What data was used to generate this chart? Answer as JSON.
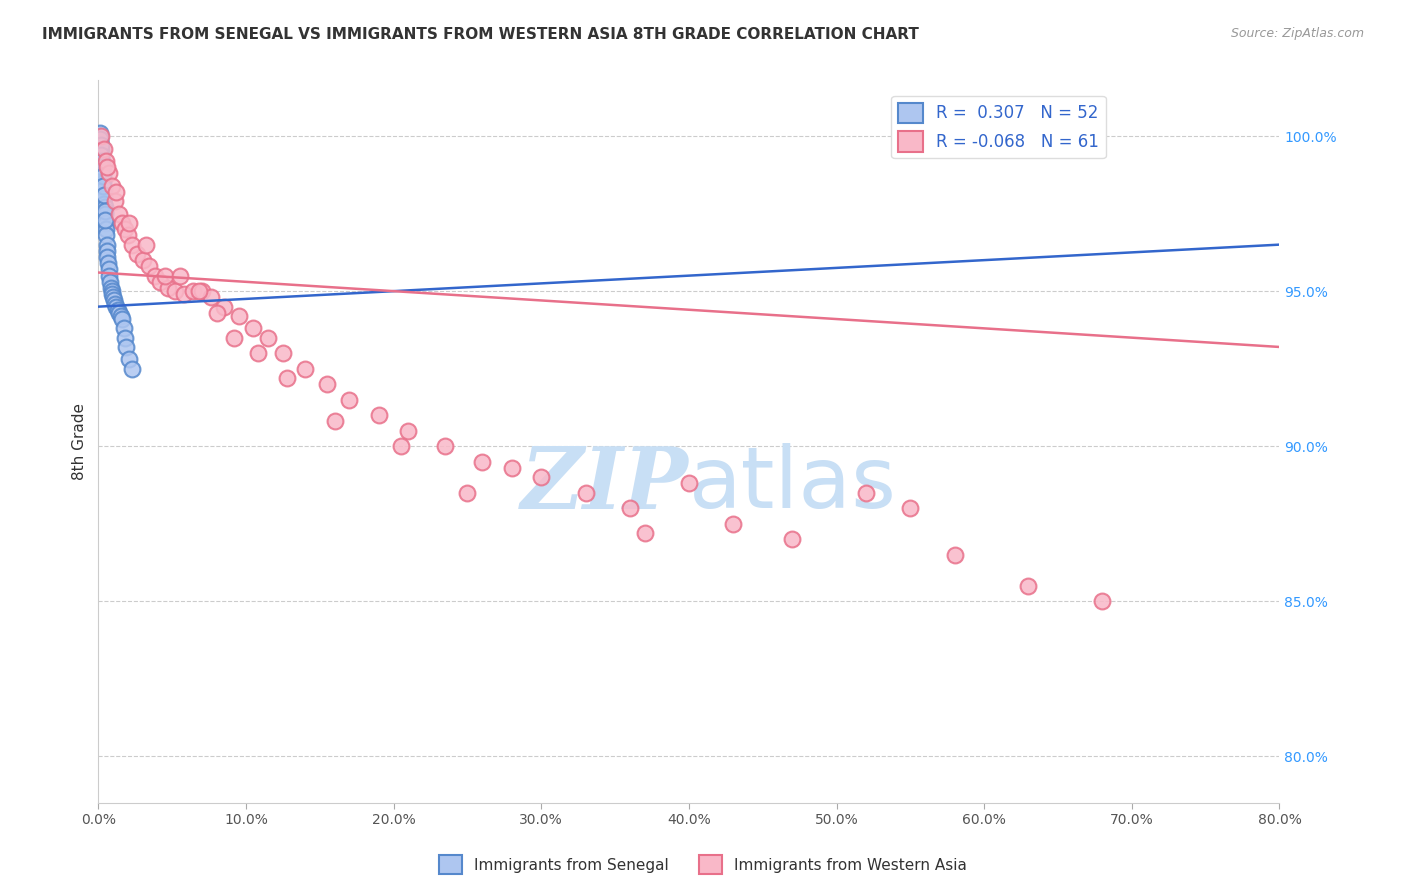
{
  "title": "IMMIGRANTS FROM SENEGAL VS IMMIGRANTS FROM WESTERN ASIA 8TH GRADE CORRELATION CHART",
  "source": "Source: ZipAtlas.com",
  "ylabel": "8th Grade",
  "x_tick_labels": [
    "0.0%",
    "10.0%",
    "20.0%",
    "30.0%",
    "40.0%",
    "50.0%",
    "60.0%",
    "70.0%",
    "80.0%"
  ],
  "x_tick_values": [
    0.0,
    10.0,
    20.0,
    30.0,
    40.0,
    50.0,
    60.0,
    70.0,
    80.0
  ],
  "y_tick_labels_right": [
    "80.0%",
    "85.0%",
    "90.0%",
    "95.0%",
    "100.0%"
  ],
  "y_tick_values": [
    80.0,
    85.0,
    90.0,
    95.0,
    100.0
  ],
  "xlim": [
    0.0,
    80.0
  ],
  "ylim": [
    78.5,
    101.8
  ],
  "senegal_color_fill": "#aec6f0",
  "senegal_color_edge": "#5588cc",
  "western_asia_color_fill": "#f9b8c8",
  "western_asia_color_edge": "#e8708a",
  "trend_blue_color": "#3366cc",
  "trend_pink_color": "#e8708a",
  "watermark_zip": "ZIP",
  "watermark_atlas": "atlas",
  "watermark_color_zip": "#c8dff5",
  "watermark_color_atlas": "#c8dff5",
  "bottom_legend": [
    "Immigrants from Senegal",
    "Immigrants from Western Asia"
  ],
  "legend_labels": [
    "R =  0.307   N = 52",
    "R = -0.068   N = 61"
  ],
  "legend_colors_fill": [
    "#aec6f0",
    "#f9b8c8"
  ],
  "legend_colors_edge": [
    "#5588cc",
    "#e8708a"
  ],
  "senegal_x": [
    0.08,
    0.12,
    0.15,
    0.18,
    0.2,
    0.22,
    0.25,
    0.28,
    0.3,
    0.32,
    0.35,
    0.38,
    0.4,
    0.42,
    0.45,
    0.48,
    0.5,
    0.52,
    0.55,
    0.58,
    0.6,
    0.65,
    0.7,
    0.75,
    0.8,
    0.85,
    0.9,
    0.95,
    1.0,
    1.05,
    1.1,
    1.2,
    1.3,
    1.4,
    1.5,
    1.6,
    1.7,
    1.8,
    1.9,
    2.1,
    2.3,
    0.1,
    0.13,
    0.16,
    0.19,
    0.23,
    0.26,
    0.29,
    0.33,
    0.36,
    0.43,
    0.47
  ],
  "senegal_y": [
    100.0,
    99.8,
    99.6,
    99.5,
    99.3,
    99.1,
    99.0,
    98.8,
    98.6,
    98.5,
    98.3,
    98.0,
    97.8,
    97.7,
    97.5,
    97.2,
    97.0,
    96.8,
    96.5,
    96.3,
    96.1,
    95.9,
    95.7,
    95.5,
    95.3,
    95.1,
    95.0,
    94.9,
    94.8,
    94.7,
    94.6,
    94.5,
    94.4,
    94.3,
    94.2,
    94.1,
    93.8,
    93.5,
    93.2,
    92.8,
    92.5,
    100.1,
    99.9,
    99.7,
    99.4,
    99.2,
    99.0,
    98.7,
    98.4,
    98.1,
    97.6,
    97.3
  ],
  "western_asia_x": [
    0.2,
    0.35,
    0.5,
    0.7,
    0.9,
    1.1,
    1.4,
    1.6,
    1.8,
    2.0,
    2.3,
    2.6,
    3.0,
    3.4,
    3.8,
    4.2,
    4.7,
    5.2,
    5.8,
    6.4,
    7.0,
    7.6,
    8.5,
    9.5,
    10.5,
    11.5,
    12.5,
    14.0,
    15.5,
    17.0,
    19.0,
    21.0,
    23.5,
    26.0,
    28.0,
    30.0,
    33.0,
    36.0,
    40.0,
    43.0,
    47.0,
    52.0,
    58.0,
    63.0,
    68.0,
    0.6,
    1.2,
    2.1,
    3.2,
    4.5,
    5.5,
    6.8,
    8.0,
    9.2,
    10.8,
    12.8,
    16.0,
    20.5,
    25.0,
    37.0,
    55.0
  ],
  "western_asia_y": [
    100.0,
    99.6,
    99.2,
    98.8,
    98.4,
    97.9,
    97.5,
    97.2,
    97.0,
    96.8,
    96.5,
    96.2,
    96.0,
    95.8,
    95.5,
    95.3,
    95.1,
    95.0,
    94.9,
    95.0,
    95.0,
    94.8,
    94.5,
    94.2,
    93.8,
    93.5,
    93.0,
    92.5,
    92.0,
    91.5,
    91.0,
    90.5,
    90.0,
    89.5,
    89.3,
    89.0,
    88.5,
    88.0,
    88.8,
    87.5,
    87.0,
    88.5,
    86.5,
    85.5,
    85.0,
    99.0,
    98.2,
    97.2,
    96.5,
    95.5,
    95.5,
    95.0,
    94.3,
    93.5,
    93.0,
    92.2,
    90.8,
    90.0,
    88.5,
    87.2,
    88.0
  ],
  "blue_trend_x": [
    0.0,
    80.0
  ],
  "blue_trend_y": [
    94.5,
    96.5
  ],
  "pink_trend_x": [
    0.0,
    80.0
  ],
  "pink_trend_y": [
    95.6,
    93.2
  ]
}
